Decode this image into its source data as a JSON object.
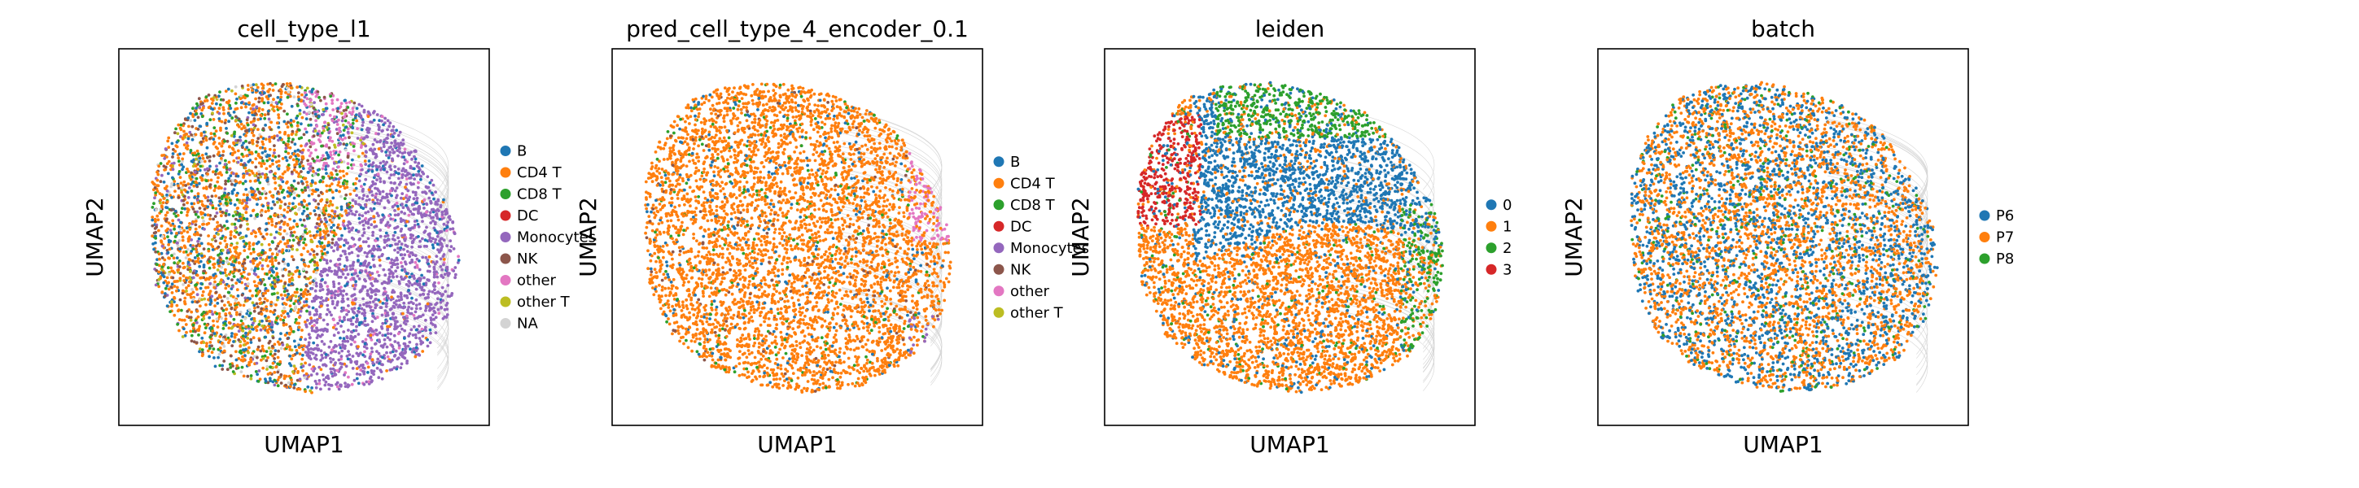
{
  "chart_data": [
    {
      "type": "scatter",
      "title": "cell_type_l1",
      "xlabel": "UMAP1",
      "ylabel": "UMAP2",
      "legend_position": "right",
      "grid": false,
      "categories": [
        "B",
        "CD4 T",
        "CD8 T",
        "DC",
        "Monocytes",
        "NK",
        "other",
        "other T",
        "NA"
      ],
      "colors": [
        "#1f77b4",
        "#ff7f0e",
        "#2ca02c",
        "#d62728",
        "#9467bd",
        "#8c564b",
        "#e377c2",
        "#bcbd22",
        "#d3d3d3"
      ]
    },
    {
      "type": "scatter",
      "title": "pred_cell_type_4_encoder_0.1",
      "xlabel": "UMAP1",
      "ylabel": "UMAP2",
      "legend_position": "right",
      "grid": false,
      "categories": [
        "B",
        "CD4 T",
        "CD8 T",
        "DC",
        "Monocytes",
        "NK",
        "other",
        "other T"
      ],
      "colors": [
        "#1f77b4",
        "#ff7f0e",
        "#2ca02c",
        "#d62728",
        "#9467bd",
        "#8c564b",
        "#e377c2",
        "#bcbd22"
      ]
    },
    {
      "type": "scatter",
      "title": "leiden",
      "xlabel": "UMAP1",
      "ylabel": "UMAP2",
      "legend_position": "right",
      "grid": false,
      "categories": [
        "0",
        "1",
        "2",
        "3"
      ],
      "colors": [
        "#1f77b4",
        "#ff7f0e",
        "#2ca02c",
        "#d62728"
      ]
    },
    {
      "type": "scatter",
      "title": "batch",
      "xlabel": "UMAP1",
      "ylabel": "UMAP2",
      "legend_position": "right",
      "grid": false,
      "categories": [
        "P6",
        "P7",
        "P8"
      ],
      "colors": [
        "#1f77b4",
        "#ff7f0e",
        "#2ca02c"
      ]
    }
  ]
}
